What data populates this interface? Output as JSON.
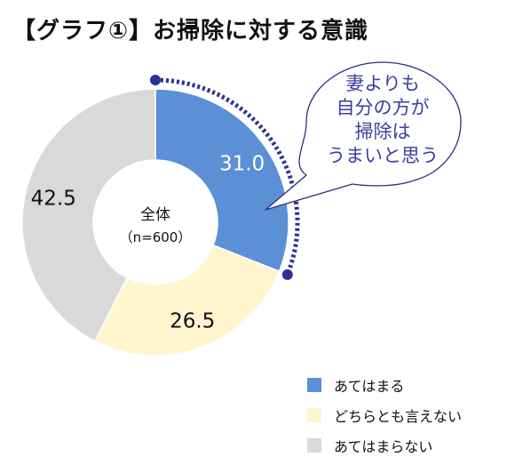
{
  "chart_data": {
    "type": "pie",
    "title": "【グラフ①】お掃除に対する意識",
    "center_label": "全体",
    "center_sublabel": "（n=600）",
    "categories": [
      "あてはまる",
      "どちらとも言えない",
      "あてはまらない"
    ],
    "values": [
      31.0,
      26.5,
      42.5
    ],
    "value_labels": [
      "31.0",
      "26.5",
      "42.5"
    ],
    "colors": [
      "#5b8fd6",
      "#fff6d0",
      "#d9d9d9"
    ],
    "legend_position": "bottom-right",
    "callout": {
      "lines": [
        "妻よりも",
        "自分の方が",
        "掃除は",
        "うまいと思う"
      ],
      "text_color": "#3b3fa0",
      "outline_color": "#2b2f7a"
    },
    "highlight_arc_color": "#2e3192"
  }
}
